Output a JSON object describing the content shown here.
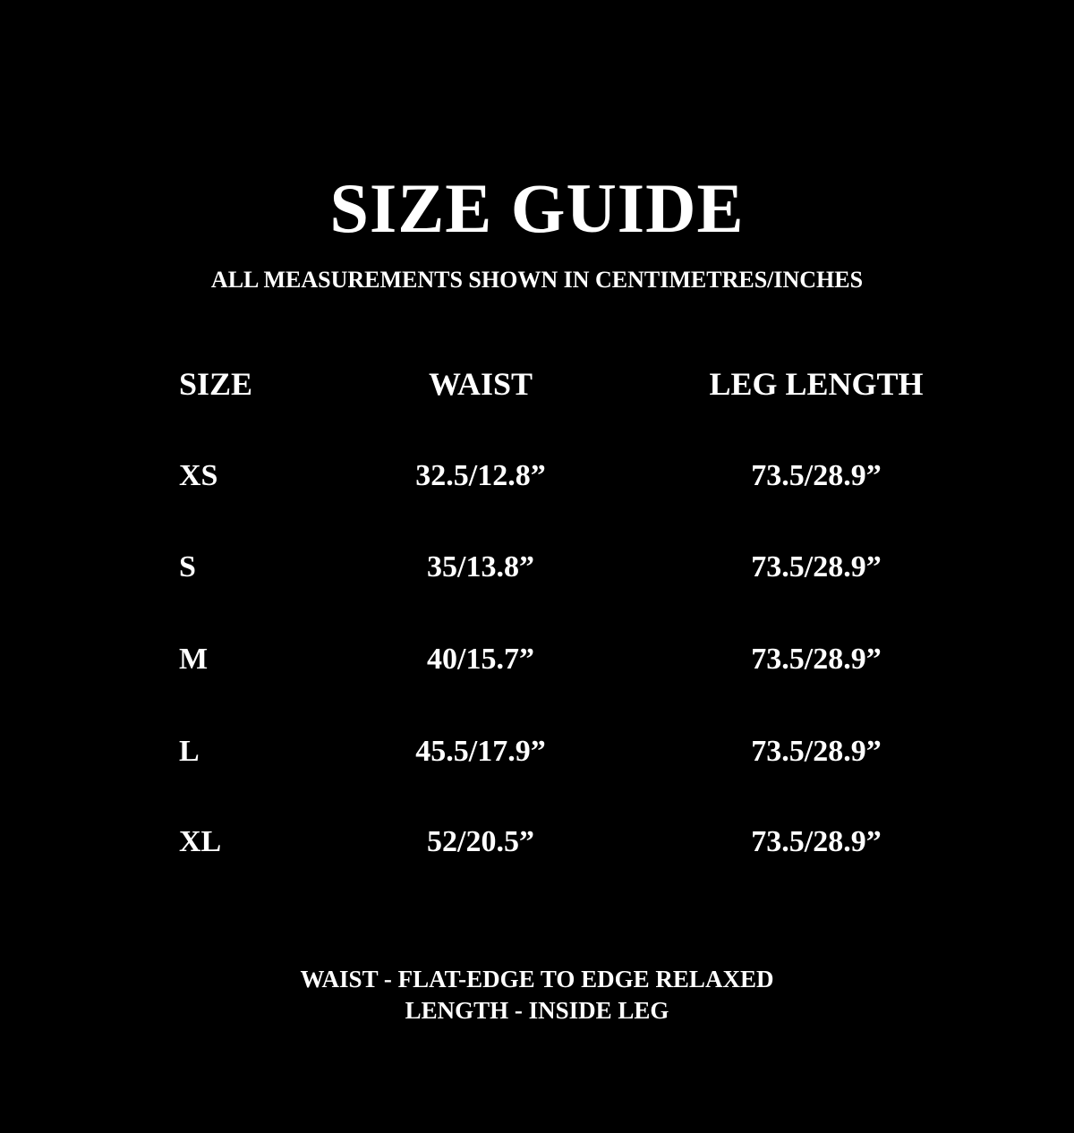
{
  "title": "SIZE GUIDE",
  "subtitle": "ALL MEASUREMENTS SHOWN IN CENTIMETRES/INCHES",
  "table": {
    "headers": [
      "SIZE",
      "WAIST",
      "LEG LENGTH"
    ],
    "rows": [
      [
        "XS",
        "32.5/12.8”",
        "73.5/28.9”"
      ],
      [
        "S",
        "35/13.8”",
        "73.5/28.9”"
      ],
      [
        "M",
        "40/15.7”",
        "73.5/28.9”"
      ],
      [
        "L",
        "45.5/17.9”",
        "73.5/28.9”"
      ],
      [
        "XL",
        "52/20.5”",
        "73.5/28.9”"
      ]
    ]
  },
  "notes": [
    "WAIST - FLAT-EDGE TO EDGE RELAXED",
    "LENGTH - INSIDE LEG"
  ],
  "colors": {
    "background": "#000000",
    "text": "#ffffff"
  }
}
